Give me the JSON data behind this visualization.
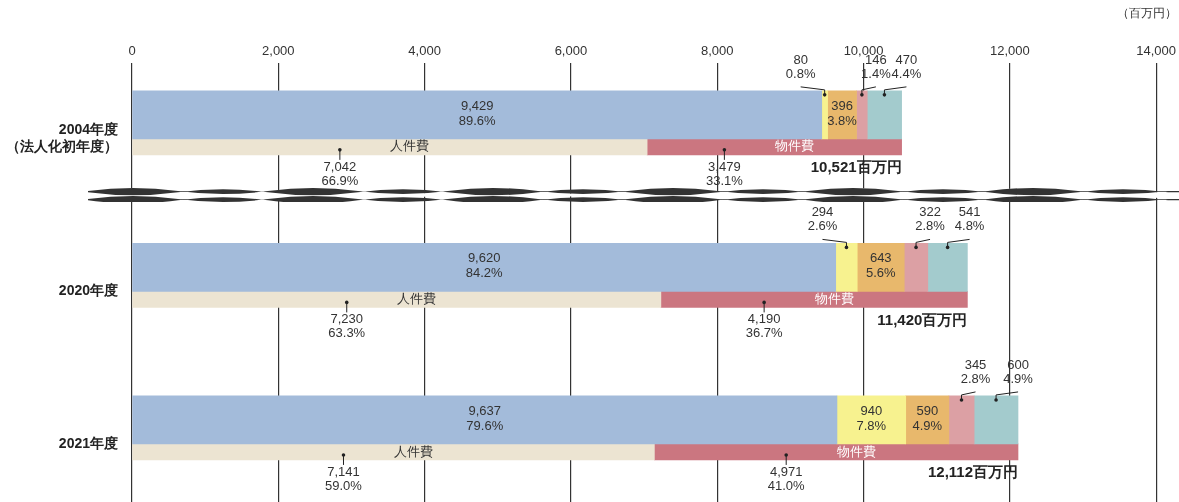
{
  "chart_data": {
    "type": "bar",
    "orientation": "horizontal",
    "categories": [
      "2004年度（法人化初年度）",
      "2020年度",
      "2021年度"
    ],
    "xlabel": "（百万円）",
    "xlim": [
      0,
      14000
    ],
    "xticks": [
      0,
      {
        "value": 2000,
        "label": "2,000"
      },
      {
        "value": 4000,
        "label": "4,000"
      },
      {
        "value": 6000,
        "label": "6,000"
      },
      {
        "value": 8000,
        "label": "8,000"
      },
      {
        "value": 10000,
        "label": "10,000"
      },
      {
        "value": 12000,
        "label": "12,000"
      },
      {
        "value": 14000,
        "label": "14,000"
      }
    ],
    "grid": "x",
    "legend": false,
    "series": [
      {
        "color": "#a3bbda",
        "base": [
          0,
          0,
          0
        ],
        "values": [
          9429,
          9620,
          9637
        ],
        "value_labels": [
          "9,429\n89.6%",
          "9,620\n84.2%",
          "9,637\n79.6%"
        ]
      },
      {
        "color": "#f7f28f",
        "base": [
          9429,
          9620,
          9637
        ],
        "values": [
          80,
          294,
          940
        ],
        "value_labels": [
          "80\n0.8%",
          "294\n2.6%",
          "940\n7.8%"
        ]
      },
      {
        "color": "#e8b86c",
        "base": [
          9509,
          9914,
          10577
        ],
        "values": [
          396,
          643,
          590
        ],
        "value_labels": [
          "396\n3.8%",
          "643\n5.6%",
          "590\n4.9%"
        ]
      },
      {
        "color": "#dca0a4",
        "base": [
          9905,
          10557,
          11167
        ],
        "values": [
          146,
          322,
          345
        ],
        "value_labels": [
          "146\n1.4%",
          "322\n2.8%",
          "345\n2.8%"
        ]
      },
      {
        "color": "#a3cbcd",
        "base": [
          10051,
          10879,
          11512
        ],
        "values": [
          470,
          541,
          600
        ],
        "value_labels": [
          "470\n4.4%",
          "541\n4.8%",
          "600\n4.9%"
        ]
      },
      {
        "name": "人件費",
        "color": "#ece4d2",
        "base": [
          0,
          0,
          0
        ],
        "values": [
          7042,
          7230,
          7141
        ],
        "value_labels": [
          "7,042\n66.9%",
          "7,230\n63.3%",
          "7,141\n59.0%"
        ]
      },
      {
        "name": "物件費",
        "color": "#cb7680",
        "base": [
          7042,
          7230,
          7141
        ],
        "values": [
          3479,
          4190,
          4971
        ],
        "value_labels": [
          "3,479\n33.1%",
          "4,190\n36.7%",
          "4,971\n41.0%"
        ]
      }
    ],
    "annotations": [
      {
        "text": "10,521百万円",
        "x": 10521,
        "y": "2004年度（法人化初年度）"
      },
      {
        "text": "11,420百万円",
        "x": 11420,
        "y": "2020年度"
      },
      {
        "text": "12,112百万円",
        "x": 12112,
        "y": "2021年度"
      }
    ]
  }
}
